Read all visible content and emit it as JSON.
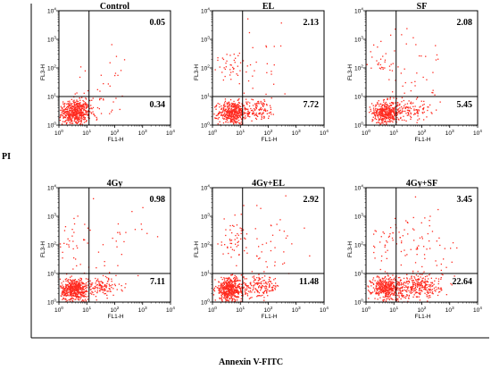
{
  "figure": {
    "y_label": "PI",
    "x_label": "Annexin V-FITC"
  },
  "colors": {
    "dots": "#ff2a1f",
    "axes": "#000000"
  },
  "chart_data": {
    "type": "scatter",
    "x_scale": "log",
    "y_scale": "log",
    "xlim": [
      1,
      10000
    ],
    "ylim": [
      1,
      10000
    ],
    "x_ticks": [
      "10^0",
      "10^1",
      "10^2",
      "10^3",
      "10^4"
    ],
    "y_ticks": [
      "10^0",
      "10^1",
      "10^2",
      "10^3",
      "10^4"
    ],
    "xlabel": "FL1-H",
    "ylabel": "FL3-H",
    "gates": {
      "x": 12,
      "y": 10
    },
    "panels": [
      {
        "title": "Control",
        "upper_right": "0.05",
        "lower_right": "0.34"
      },
      {
        "title": "EL",
        "upper_right": "2.13",
        "lower_right": "7.72"
      },
      {
        "title": "SF",
        "upper_right": "2.08",
        "lower_right": "5.45"
      },
      {
        "title": "4Gy",
        "upper_right": "0.98",
        "lower_right": "7.11"
      },
      {
        "title": "4Gy+EL",
        "upper_right": "2.92",
        "lower_right": "11.48"
      },
      {
        "title": "4Gy+SF",
        "upper_right": "3.45",
        "lower_right": "22.64"
      }
    ]
  }
}
